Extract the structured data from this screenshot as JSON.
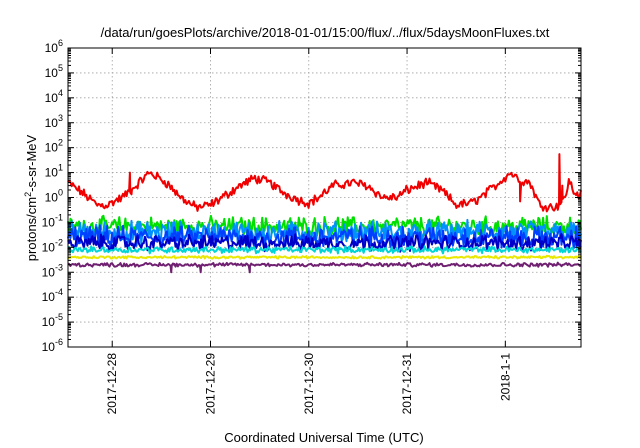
{
  "chart_data": {
    "type": "line",
    "title": "/data/run/goesPlots/archive/2018-01-01/15:00/flux/../flux/5daysMoonFluxes.txt",
    "xlabel": "Coordinated Universal Time (UTC)",
    "ylabel_parts": {
      "base": "protons/cm",
      "sup": "2",
      "rest": "-s-sr-MeV"
    },
    "yscale": "log",
    "ylim_exp": [
      -6,
      6
    ],
    "y_tick_base": "10",
    "y_tick_exponents": [
      "-6",
      "-5",
      "-4",
      "-3",
      "-2",
      "-1",
      "0",
      "1",
      "2",
      "3",
      "4",
      "5",
      "6"
    ],
    "xlim_days": [
      -0.45,
      4.77
    ],
    "x_ticks": [
      {
        "day": 0,
        "label": "2017-12-28"
      },
      {
        "day": 1,
        "label": "2017-12-29"
      },
      {
        "day": 2,
        "label": "2017-12-30"
      },
      {
        "day": 3,
        "label": "2017-12-31"
      },
      {
        "day": 4,
        "label": "2018-1-1"
      }
    ],
    "grid": true,
    "series": [
      {
        "color": "#f00000",
        "noise": 0.15,
        "points": [
          [
            -0.45,
            4.0
          ],
          [
            -0.3,
            1.5
          ],
          [
            -0.15,
            0.5
          ],
          [
            -0.05,
            0.5
          ],
          [
            0.1,
            1.0
          ],
          [
            0.2,
            2.0
          ],
          [
            0.3,
            5.0
          ],
          [
            0.38,
            10.0
          ],
          [
            0.45,
            7.0
          ],
          [
            0.55,
            4.0
          ],
          [
            0.7,
            1.0
          ],
          [
            0.85,
            0.4
          ],
          [
            1.0,
            0.5
          ],
          [
            1.15,
            1.2
          ],
          [
            1.3,
            3.0
          ],
          [
            1.45,
            6.0
          ],
          [
            1.6,
            4.0
          ],
          [
            1.75,
            1.5
          ],
          [
            1.9,
            0.8
          ],
          [
            2.0,
            0.6
          ],
          [
            2.1,
            1.0
          ],
          [
            2.25,
            3.0
          ],
          [
            2.45,
            4.0
          ],
          [
            2.6,
            3.0
          ],
          [
            2.75,
            1.0
          ],
          [
            2.9,
            1.0
          ],
          [
            3.0,
            2.0
          ],
          [
            3.2,
            4.0
          ],
          [
            3.35,
            2.0
          ],
          [
            3.5,
            0.5
          ],
          [
            3.65,
            0.6
          ],
          [
            3.75,
            1.0
          ],
          [
            3.9,
            3.0
          ],
          [
            4.05,
            10.0
          ],
          [
            4.15,
            5.0
          ],
          [
            4.25,
            4.0
          ],
          [
            4.35,
            0.5
          ],
          [
            4.5,
            0.4
          ],
          [
            4.6,
            0.8
          ],
          [
            4.65,
            5.0
          ],
          [
            4.7,
            1.5
          ],
          [
            4.77,
            1.3
          ]
        ],
        "spikes": [
          [
            0.18,
            10.0
          ],
          [
            0.2,
            2.0
          ],
          [
            4.1,
            8.0
          ],
          [
            4.15,
            0.7
          ],
          [
            4.55,
            55.0
          ],
          [
            4.58,
            3.0
          ]
        ]
      },
      {
        "color": "#00e000",
        "noise": 0.3,
        "points": [
          [
            -0.45,
            0.07
          ],
          [
            4.77,
            0.07
          ]
        ]
      },
      {
        "color": "#0090ff",
        "noise": 0.35,
        "points": [
          [
            -0.45,
            0.04
          ],
          [
            4.77,
            0.04
          ]
        ]
      },
      {
        "color": "#0040ff",
        "noise": 0.35,
        "points": [
          [
            -0.45,
            0.025
          ],
          [
            4.77,
            0.025
          ]
        ]
      },
      {
        "color": "#0000c8",
        "noise": 0.25,
        "points": [
          [
            -0.45,
            0.015
          ],
          [
            4.77,
            0.015
          ]
        ]
      },
      {
        "color": "#00d4d4",
        "noise": 0.1,
        "points": [
          [
            -0.45,
            0.008
          ],
          [
            4.77,
            0.008
          ]
        ]
      },
      {
        "color": "#e8e800",
        "noise": 0.04,
        "points": [
          [
            -0.45,
            0.004
          ],
          [
            4.77,
            0.004
          ]
        ]
      },
      {
        "color": "#702070",
        "noise": 0.06,
        "points": [
          [
            -0.45,
            0.002
          ],
          [
            4.77,
            0.002
          ]
        ],
        "spikes": [
          [
            0.6,
            0.001
          ],
          [
            0.62,
            0.002
          ],
          [
            0.9,
            0.001
          ],
          [
            0.92,
            0.002
          ],
          [
            1.4,
            0.001
          ],
          [
            1.42,
            0.002
          ]
        ]
      }
    ]
  }
}
